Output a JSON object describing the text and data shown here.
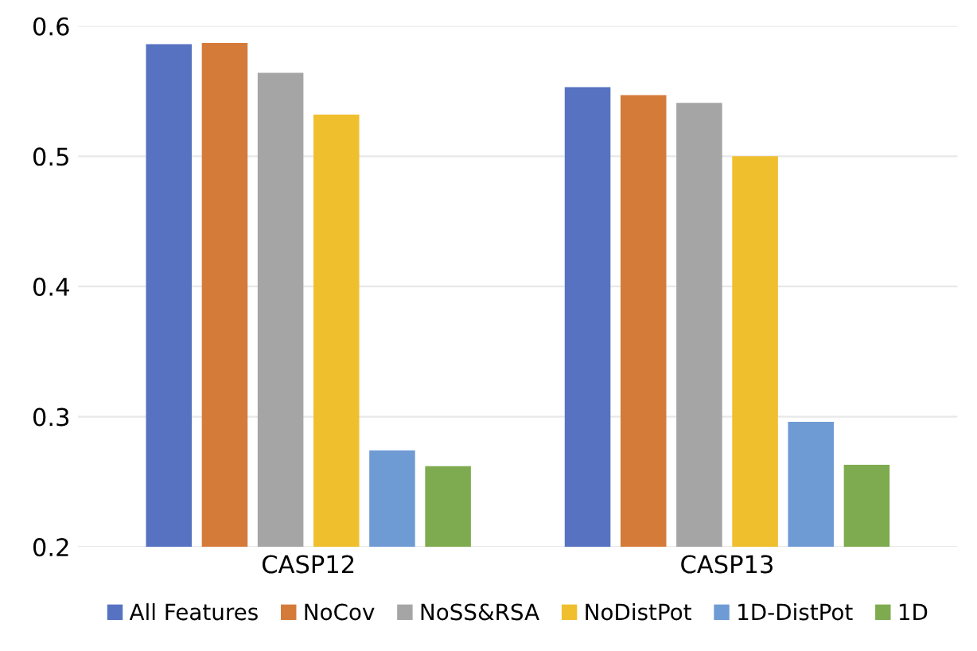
{
  "chart_data": {
    "type": "bar",
    "categories": [
      "CASP12",
      "CASP13"
    ],
    "series": [
      {
        "name": "All Features",
        "color": "#5672c1",
        "values": [
          0.586,
          0.553
        ]
      },
      {
        "name": "NoCov",
        "color": "#d57b3a",
        "values": [
          0.587,
          0.547
        ]
      },
      {
        "name": "NoSS&RSA",
        "color": "#a5a5a5",
        "values": [
          0.564,
          0.541
        ]
      },
      {
        "name": "NoDistPot",
        "color": "#efbf2e",
        "values": [
          0.532,
          0.5
        ]
      },
      {
        "name": "1D-DistPot",
        "color": "#6f9bd4",
        "values": [
          0.274,
          0.296
        ]
      },
      {
        "name": "1D",
        "color": "#7fab50",
        "values": [
          0.262,
          0.263
        ]
      }
    ],
    "ylim": [
      0.2,
      0.6
    ],
    "yticks": [
      0.2,
      0.3,
      0.4,
      0.5,
      0.6
    ],
    "grid": "y",
    "legend": "bottom"
  }
}
